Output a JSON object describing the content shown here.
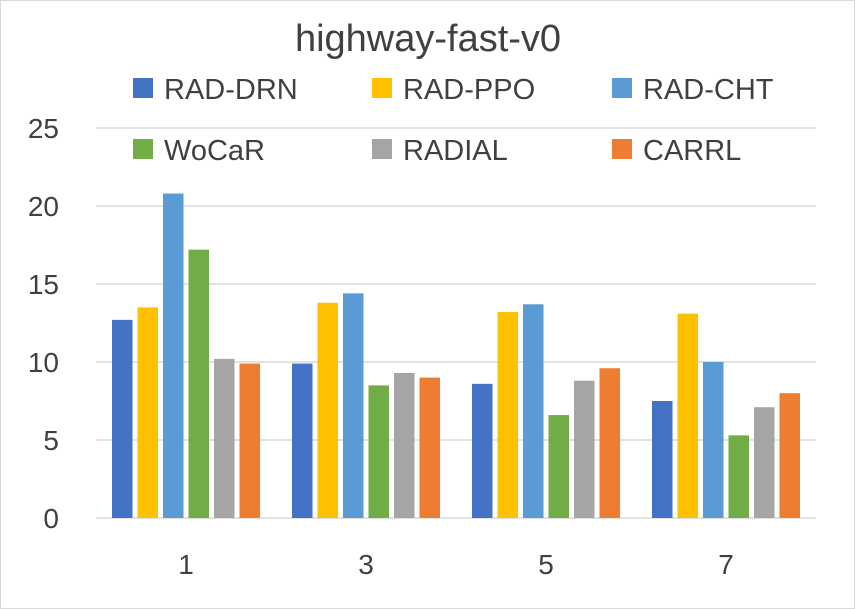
{
  "chart_data": {
    "type": "bar",
    "title": "highway-fast-v0",
    "xlabel": "",
    "ylabel": "",
    "categories": [
      "1",
      "3",
      "5",
      "7"
    ],
    "ylim": [
      0,
      25
    ],
    "yticks": [
      0,
      5,
      10,
      15,
      20,
      25
    ],
    "grid": true,
    "legend_position": "top",
    "series": [
      {
        "name": "RAD-DRN",
        "color": "#4472c4",
        "values": [
          12.7,
          9.9,
          8.6,
          7.5
        ]
      },
      {
        "name": "RAD-PPO",
        "color": "#ffc000",
        "values": [
          13.5,
          13.8,
          13.2,
          13.1
        ]
      },
      {
        "name": "RAD-CHT",
        "color": "#5b9bd5",
        "values": [
          20.8,
          14.4,
          13.7,
          10.0
        ]
      },
      {
        "name": "WoCaR",
        "color": "#70ad47",
        "values": [
          17.2,
          8.5,
          6.6,
          5.3
        ]
      },
      {
        "name": "RADIAL",
        "color": "#a5a5a5",
        "values": [
          10.2,
          9.3,
          8.8,
          7.1
        ]
      },
      {
        "name": "CARRL",
        "color": "#ed7d31",
        "values": [
          9.9,
          9.0,
          9.6,
          8.0
        ]
      }
    ]
  }
}
